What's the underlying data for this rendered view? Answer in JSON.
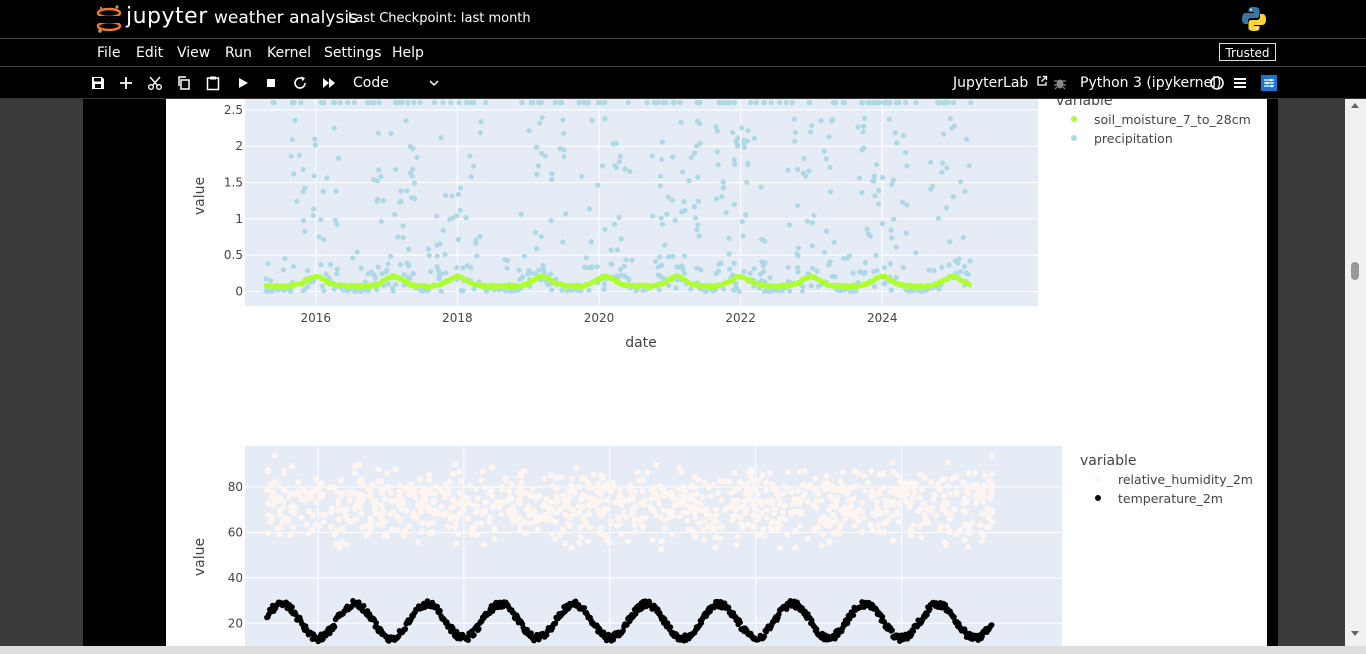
{
  "header": {
    "logo_text": "jupyter",
    "notebook_title": "weather analysis",
    "checkpoint": "Last Checkpoint: last month"
  },
  "menu": {
    "items": [
      "File",
      "Edit",
      "View",
      "Run",
      "Kernel",
      "Settings",
      "Help"
    ],
    "trusted": "Trusted"
  },
  "toolbar": {
    "cell_type": "Code",
    "jupyterlab": "JupyterLab",
    "kernel": "Python 3 (ipykernel)",
    "icons": [
      "save-icon",
      "add-icon",
      "cut-icon",
      "copy-icon",
      "paste-icon",
      "run-icon",
      "stop-icon",
      "restart-icon",
      "fast-forward-icon"
    ]
  },
  "colors": {
    "plot_bg": "#e5ecf6",
    "soil": "#adff2f",
    "precip": "#add8e6",
    "humidity": "#fff5f0",
    "temperature": "#000000"
  },
  "chart_data": [
    {
      "type": "scatter",
      "xlabel": "date",
      "ylabel": "value",
      "x_ticks": [
        "2016",
        "2018",
        "2020",
        "2022",
        "2024"
      ],
      "y_ticks": [
        "0",
        "0.5",
        "1",
        "1.5",
        "2",
        "2.5"
      ],
      "xlim": [
        2015.0,
        2026.2
      ],
      "ylim": [
        -0.2,
        2.65
      ],
      "legend_title": "variable",
      "legend_position": "right",
      "series": [
        {
          "name": "soil_moisture_7_to_28cm",
          "color": "#adff2f"
        },
        {
          "name": "precipitation",
          "color": "#add8e6"
        }
      ]
    },
    {
      "type": "scatter",
      "xlabel": "",
      "ylabel": "value",
      "y_ticks": [
        "20",
        "40",
        "60",
        "80"
      ],
      "xlim": [
        2015.0,
        2026.2
      ],
      "ylim": [
        10,
        98
      ],
      "legend_title": "variable",
      "legend_position": "right",
      "series": [
        {
          "name": "relative_humidity_2m",
          "color": "#fff5f0"
        },
        {
          "name": "temperature_2m",
          "color": "#000000"
        }
      ]
    }
  ]
}
